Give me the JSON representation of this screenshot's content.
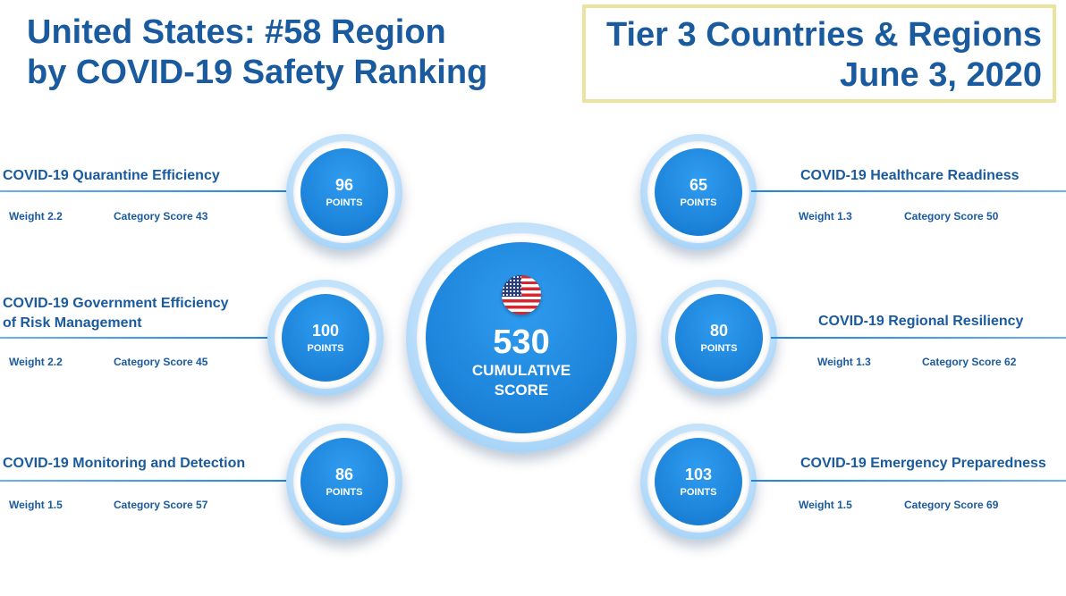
{
  "header": {
    "title_line1": "United States: #58 Region",
    "title_line2": "by COVID-19 Safety Ranking",
    "tier_line1": "Tier 3 Countries & Regions",
    "tier_line2": "June 3, 2020"
  },
  "center": {
    "flag": "us-flag-icon",
    "score": "530",
    "label_line1": "CUMULATIVE",
    "label_line2": "SCORE"
  },
  "points_label": "POINTS",
  "categories": {
    "quarantine": {
      "title": "COVID-19 Quarantine Efficiency",
      "points": "96",
      "weight": "Weight 2.2",
      "category_score": "Category Score 43"
    },
    "government": {
      "title_line1": "COVID-19 Government Efficiency",
      "title_line2": "of Risk Management",
      "points": "100",
      "weight": "Weight 2.2",
      "category_score": "Category Score 45"
    },
    "monitoring": {
      "title": "COVID-19 Monitoring and Detection",
      "points": "86",
      "weight": "Weight 1.5",
      "category_score": "Category Score 57"
    },
    "healthcare": {
      "title": "COVID-19 Healthcare Readiness",
      "points": "65",
      "weight": "Weight 1.3",
      "category_score": "Category Score 50"
    },
    "regional": {
      "title": "COVID-19 Regional Resiliency",
      "points": "80",
      "weight": "Weight 1.3",
      "category_score": "Category Score 62"
    },
    "emergency": {
      "title": "COVID-19 Emergency Preparedness",
      "points": "103",
      "weight": "Weight 1.5",
      "category_score": "Category Score 69"
    }
  },
  "colors": {
    "title_blue": "#1a5a9e",
    "circle_blue": "#1e86dc",
    "box_border": "#ebe3a0"
  }
}
